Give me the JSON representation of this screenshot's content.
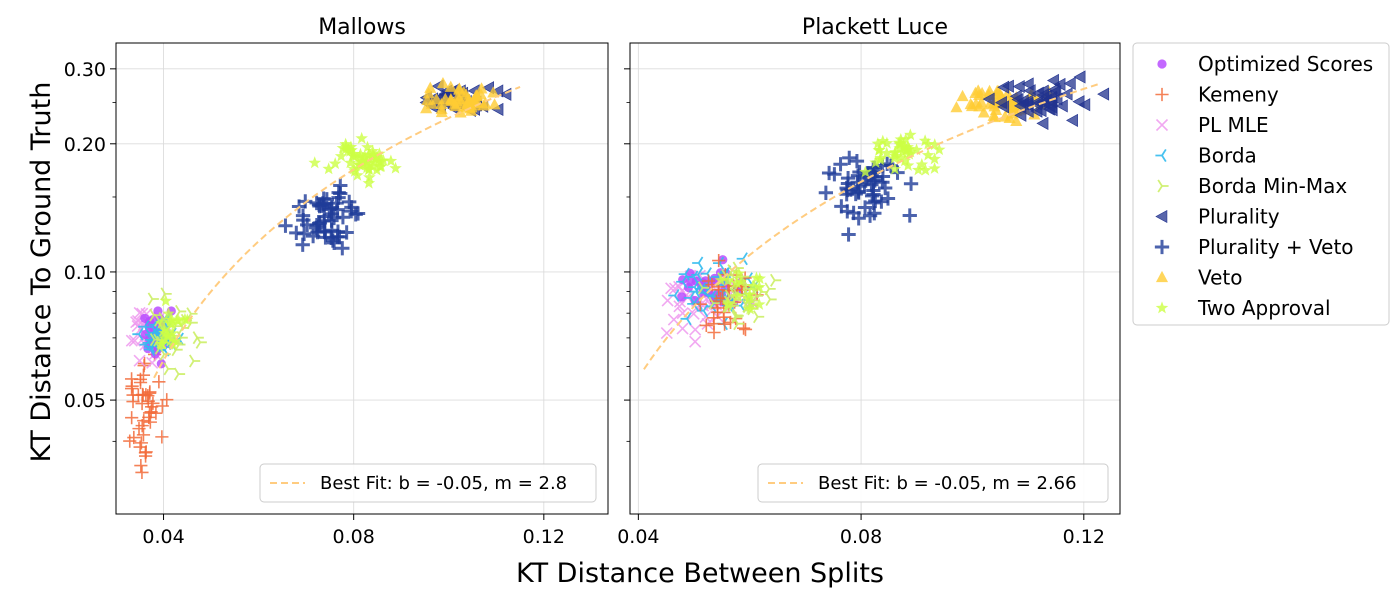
{
  "figure": {
    "xlabel": "KT Distance Between Splits",
    "ylabel": "KT Distance To Ground Truth"
  },
  "legend": {
    "placement": "outside-right",
    "items": [
      {
        "name": "Optimized Scores",
        "color": "#b84dff",
        "marker": "dot"
      },
      {
        "name": "Kemeny",
        "color": "#f26b3a",
        "marker": "plus"
      },
      {
        "name": "PL MLE",
        "color": "#ee99ee",
        "marker": "x"
      },
      {
        "name": "Borda",
        "color": "#33bbee",
        "marker": "tri-left"
      },
      {
        "name": "Borda Min-Max",
        "color": "#ccee66",
        "marker": "tri-right"
      },
      {
        "name": "Plurality",
        "color": "#22338f",
        "marker": "triangle-left"
      },
      {
        "name": "Plurality + Veto",
        "color": "#1f3c99",
        "marker": "bold-plus"
      },
      {
        "name": "Veto",
        "color": "#ffcc33",
        "marker": "triangle-up"
      },
      {
        "name": "Two Approval",
        "color": "#ccff44",
        "marker": "star"
      }
    ]
  },
  "chart_data": [
    {
      "type": "scatter",
      "title": "Mallows",
      "xlabel": "KT Distance Between Splits",
      "ylabel": "KT Distance To Ground Truth",
      "xscale": "linear",
      "yscale": "log",
      "xlim": [
        0.03,
        0.1335
      ],
      "ylim": [
        0.027,
        0.345
      ],
      "xticks": [
        0.04,
        0.08,
        0.12
      ],
      "xticklabels": [
        "0.04",
        "0.08",
        "0.12"
      ],
      "yticks": [
        0.05,
        0.1,
        0.2,
        0.3
      ],
      "yticklabels": [
        "0.05",
        "0.10",
        "0.20",
        "0.30"
      ],
      "grid": true,
      "fit": {
        "label": "Best Fit: b = -0.05, m = 2.8",
        "b": -0.05,
        "m": 2.8,
        "x_range": [
          0.038,
          0.115
        ],
        "color": "#ffcc80"
      },
      "legend_placement": "lower-right",
      "clusters": [
        {
          "series": "Kemeny",
          "cx": 0.036,
          "cy": 0.047,
          "sx": 0.0022,
          "sy": 0.008,
          "n": 45
        },
        {
          "series": "PL MLE",
          "cx": 0.037,
          "cy": 0.072,
          "sx": 0.0022,
          "sy": 0.005,
          "n": 30
        },
        {
          "series": "Optimized Scores",
          "cx": 0.038,
          "cy": 0.073,
          "sx": 0.0016,
          "sy": 0.005,
          "n": 28
        },
        {
          "series": "Borda",
          "cx": 0.039,
          "cy": 0.071,
          "sx": 0.0018,
          "sy": 0.004,
          "n": 30
        },
        {
          "series": "Borda Min-Max",
          "cx": 0.042,
          "cy": 0.072,
          "sx": 0.0024,
          "sy": 0.006,
          "n": 30
        },
        {
          "series": "Two Approval",
          "cx": 0.041,
          "cy": 0.073,
          "sx": 0.002,
          "sy": 0.005,
          "n": 20
        },
        {
          "series": "Plurality + Veto",
          "cx": 0.074,
          "cy": 0.135,
          "sx": 0.0035,
          "sy": 0.011,
          "n": 55
        },
        {
          "series": "Two Approval",
          "cx": 0.082,
          "cy": 0.184,
          "sx": 0.0035,
          "sy": 0.009,
          "n": 55
        },
        {
          "series": "Plurality",
          "cx": 0.103,
          "cy": 0.256,
          "sx": 0.004,
          "sy": 0.011,
          "n": 40
        },
        {
          "series": "Veto",
          "cx": 0.103,
          "cy": 0.253,
          "sx": 0.0035,
          "sy": 0.009,
          "n": 50
        }
      ]
    },
    {
      "type": "scatter",
      "title": "Plackett Luce",
      "xlabel": "KT Distance Between Splits",
      "ylabel": "KT Distance To Ground Truth",
      "xscale": "linear",
      "yscale": "log",
      "xlim": [
        0.0385,
        0.1265
      ],
      "ylim": [
        0.027,
        0.345
      ],
      "xticks": [
        0.04,
        0.08,
        0.12
      ],
      "xticklabels": [
        "0.04",
        "0.08",
        "0.12"
      ],
      "yticks": [
        0.05,
        0.1,
        0.2,
        0.3
      ],
      "yticklabels": [
        "",
        "",
        "",
        ""
      ],
      "grid": true,
      "fit": {
        "label": "Best Fit: b = -0.05, m = 2.66",
        "b": -0.05,
        "m": 2.66,
        "x_range": [
          0.041,
          0.123
        ],
        "color": "#ffcc80"
      },
      "legend_placement": "lower-right",
      "clusters": [
        {
          "series": "PL MLE",
          "cx": 0.051,
          "cy": 0.086,
          "sx": 0.0035,
          "sy": 0.007,
          "n": 45
        },
        {
          "series": "Optimized Scores",
          "cx": 0.053,
          "cy": 0.091,
          "sx": 0.0032,
          "sy": 0.006,
          "n": 35
        },
        {
          "series": "Borda",
          "cx": 0.054,
          "cy": 0.089,
          "sx": 0.0035,
          "sy": 0.006,
          "n": 40
        },
        {
          "series": "Kemeny",
          "cx": 0.056,
          "cy": 0.088,
          "sx": 0.003,
          "sy": 0.008,
          "n": 35
        },
        {
          "series": "Borda Min-Max",
          "cx": 0.058,
          "cy": 0.09,
          "sx": 0.0032,
          "sy": 0.006,
          "n": 40
        },
        {
          "series": "Two Approval",
          "cx": 0.059,
          "cy": 0.091,
          "sx": 0.002,
          "sy": 0.005,
          "n": 15
        },
        {
          "series": "Plurality + Veto",
          "cx": 0.081,
          "cy": 0.158,
          "sx": 0.003,
          "sy": 0.013,
          "n": 55
        },
        {
          "series": "Two Approval",
          "cx": 0.088,
          "cy": 0.193,
          "sx": 0.003,
          "sy": 0.01,
          "n": 45
        },
        {
          "series": "Veto",
          "cx": 0.105,
          "cy": 0.25,
          "sx": 0.0035,
          "sy": 0.011,
          "n": 55
        },
        {
          "series": "Plurality",
          "cx": 0.113,
          "cy": 0.258,
          "sx": 0.0045,
          "sy": 0.014,
          "n": 50
        }
      ]
    }
  ]
}
